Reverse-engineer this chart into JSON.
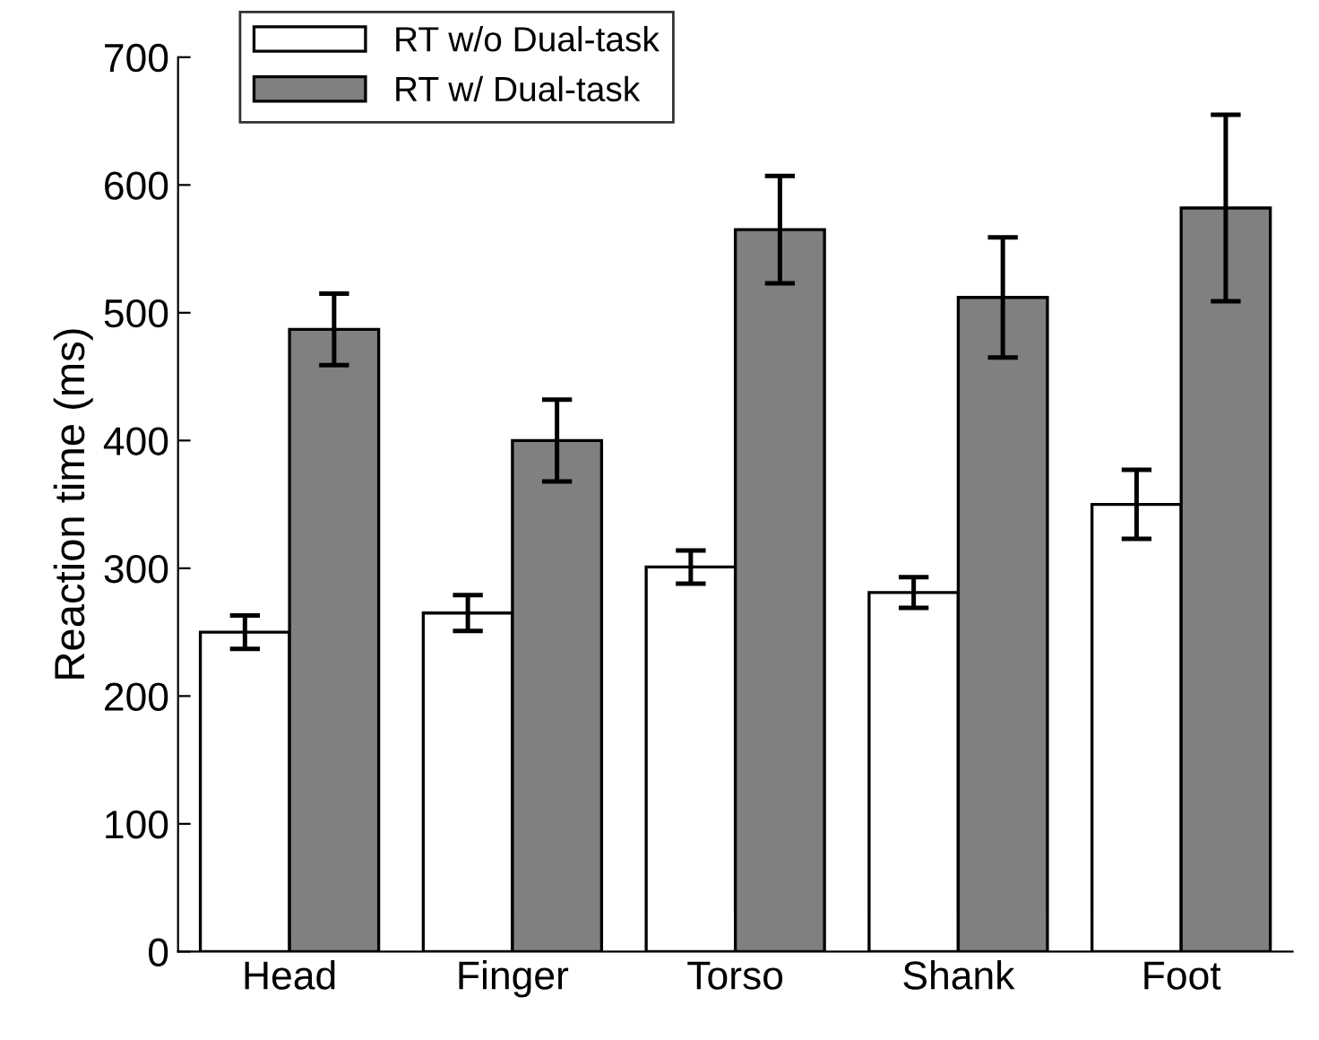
{
  "chart_data": {
    "type": "bar",
    "ylabel": "Reaction time (ms)",
    "categories": [
      "Head",
      "Finger",
      "Torso",
      "Shank",
      "Foot"
    ],
    "series": [
      {
        "name": "RT w/o Dual-task",
        "color": "#ffffff",
        "values": [
          250,
          265,
          301,
          281,
          350
        ],
        "errors": [
          13,
          14,
          13,
          12,
          27
        ]
      },
      {
        "name": "RT w/ Dual-task",
        "color": "#808080",
        "values": [
          487,
          400,
          565,
          512,
          582
        ],
        "errors": [
          28,
          32,
          42,
          47,
          73
        ]
      }
    ],
    "ylim": [
      0,
      700
    ],
    "yticks": [
      0,
      100,
      200,
      300,
      400,
      500,
      600,
      700
    ],
    "grid": false,
    "legend": "top left"
  }
}
